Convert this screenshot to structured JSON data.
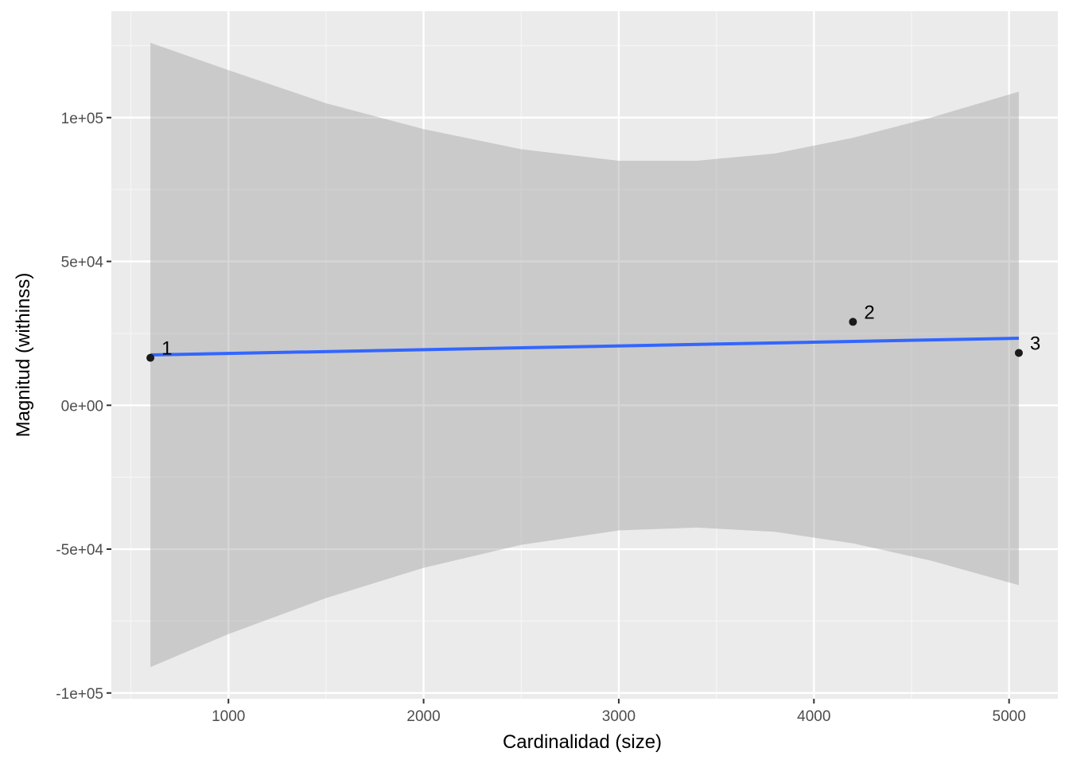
{
  "chart_data": {
    "type": "scatter",
    "xlabel": "Cardinalidad (size)",
    "ylabel": "Magnitud (withinss)",
    "xlim": [
      400,
      5250
    ],
    "ylim": [
      -102000,
      137000
    ],
    "x_ticks": [
      1000,
      2000,
      3000,
      4000,
      5000
    ],
    "x_minor_ticks": [
      500,
      1500,
      2500,
      3500,
      4500
    ],
    "y_ticks": [
      {
        "value": -100000,
        "label": "-1e+05"
      },
      {
        "value": -50000,
        "label": "-5e+04"
      },
      {
        "value": 0,
        "label": "0e+00"
      },
      {
        "value": 50000,
        "label": "5e+04"
      },
      {
        "value": 100000,
        "label": "1e+05"
      }
    ],
    "y_minor_ticks": [
      -75000,
      -25000,
      25000,
      75000,
      125000
    ],
    "grid": true,
    "points": [
      {
        "label": "1",
        "x": 600,
        "y": 16500
      },
      {
        "label": "2",
        "x": 4200,
        "y": 29000
      },
      {
        "label": "3",
        "x": 5050,
        "y": 18200
      }
    ],
    "fit_line": {
      "x": [
        600,
        5050
      ],
      "y": [
        17500,
        23300
      ]
    },
    "confidence_band": {
      "x": [
        600,
        1000,
        1500,
        2000,
        2500,
        3000,
        3400,
        3800,
        4200,
        4600,
        5050
      ],
      "upper": [
        126000,
        116500,
        105000,
        96000,
        89000,
        85000,
        85000,
        87500,
        93000,
        100000,
        109000
      ],
      "lower": [
        -91000,
        -79500,
        -67000,
        -56500,
        -48500,
        -43500,
        -42500,
        -44000,
        -48000,
        -54000,
        -62500
      ]
    },
    "colors": {
      "panel": "#ebebeb",
      "grid_major": "#ffffff",
      "band": "#c8c8c8",
      "fit_line": "#3366ff",
      "point": "#1a1a1a"
    }
  }
}
